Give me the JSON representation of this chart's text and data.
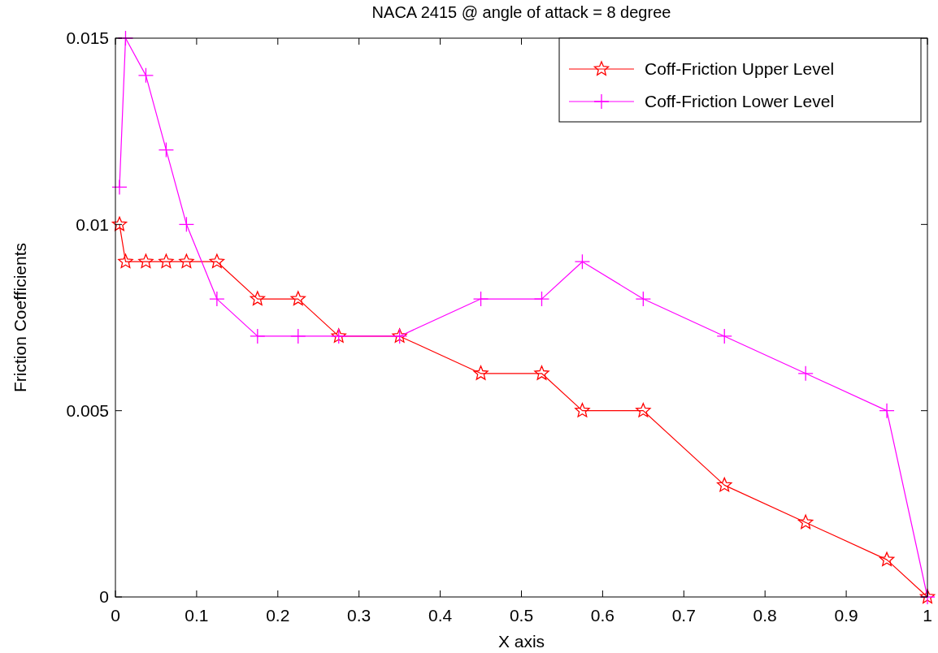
{
  "chart_data": {
    "type": "line",
    "title": "NACA 2415 @ angle of attack = 8 degree",
    "xlabel": "X axis",
    "ylabel": "Friction Coefficients",
    "x": [
      0.005,
      0.0125,
      0.0375,
      0.0625,
      0.0875,
      0.125,
      0.175,
      0.225,
      0.275,
      0.35,
      0.45,
      0.525,
      0.575,
      0.65,
      0.75,
      0.85,
      0.95,
      1
    ],
    "series": [
      {
        "name": "Coff-Friction Upper Level",
        "color": "#ff0000",
        "marker": "star",
        "values": [
          0.01,
          0.009,
          0.009,
          0.009,
          0.009,
          0.009,
          0.008,
          0.008,
          0.007,
          0.007,
          0.006,
          0.006,
          0.005,
          0.005,
          0.003,
          0.002,
          0.001,
          0
        ]
      },
      {
        "name": "Coff-Friction Lower Level",
        "color": "#ff00ff",
        "marker": "cross",
        "values": [
          0.011,
          0.015,
          0.014,
          0.012,
          0.01,
          0.008,
          0.007,
          0.007,
          0.007,
          0.007,
          0.008,
          0.008,
          0.009,
          0.008,
          0.007,
          0.006,
          0.005,
          0
        ]
      }
    ],
    "xlim": [
      0,
      1
    ],
    "ylim": [
      0,
      0.015
    ],
    "xticks": [
      0,
      0.1,
      0.2,
      0.3,
      0.4,
      0.5,
      0.6,
      0.7,
      0.8,
      0.9,
      1
    ],
    "yticks": [
      0,
      0.005,
      0.01,
      0.015
    ],
    "grid": false,
    "legend": "top right",
    "line_style": "solid"
  }
}
